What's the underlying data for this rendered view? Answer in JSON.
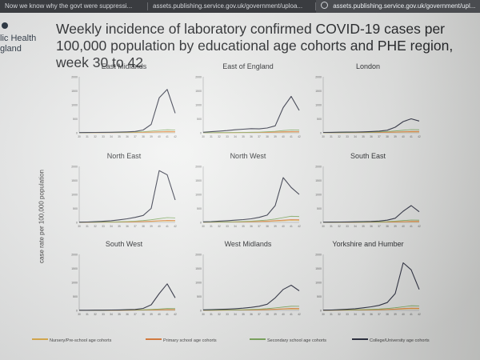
{
  "browser": {
    "tabs": [
      {
        "label": "Now we know why the govt were suppressi..."
      },
      {
        "label": "assets.publishing.service.gov.uk/government/uploa..."
      },
      {
        "label": "assets.publishing.service.gov.uk/government/upl..."
      }
    ]
  },
  "slide": {
    "logo_line1": "lic Health",
    "logo_line2": "gland",
    "title": "Weekly incidence of laboratory confirmed COVID-19 cases per 100,000 population by educational age cohorts and PHE region, week 30 to 42",
    "ylabel": "case rate per 100,000 population"
  },
  "colors": {
    "nursery": "#e2b04a",
    "primary": "#e07a35",
    "secondary": "#7aa85a",
    "college": "#2a2d3e"
  },
  "chart_data": {
    "type": "line",
    "x": [
      30,
      31,
      32,
      33,
      34,
      35,
      36,
      37,
      38,
      39,
      40,
      41,
      42
    ],
    "ylim": [
      0,
      2000
    ],
    "yticks": [
      0,
      500,
      1000,
      1500,
      2000
    ],
    "legend": [
      "Nursery/Pre-school age cohorts",
      "Primary school age cohorts",
      "Secondary school age cohorts",
      "College/University age cohorts"
    ],
    "charts": [
      {
        "title": "East Midlands",
        "series": [
          {
            "name": "Nursery/Pre-school age cohorts",
            "values": [
              4,
              5,
              6,
              7,
              8,
              9,
              10,
              12,
              15,
              20,
              26,
              32,
              30
            ]
          },
          {
            "name": "Primary school age cohorts",
            "values": [
              4,
              5,
              6,
              8,
              10,
              12,
              14,
              17,
              22,
              30,
              40,
              50,
              45
            ]
          },
          {
            "name": "Secondary school age cohorts",
            "values": [
              5,
              6,
              8,
              10,
              12,
              15,
              20,
              28,
              40,
              60,
              85,
              110,
              100
            ]
          },
          {
            "name": "College/University age cohorts",
            "values": [
              10,
              12,
              14,
              16,
              20,
              25,
              35,
              50,
              100,
              300,
              1250,
              1550,
              700
            ]
          }
        ]
      },
      {
        "title": "East of England",
        "series": [
          {
            "name": "Nursery/Pre-school age cohorts",
            "values": [
              3,
              4,
              5,
              6,
              7,
              8,
              9,
              11,
              14,
              18,
              24,
              30,
              28
            ]
          },
          {
            "name": "Primary school age cohorts",
            "values": [
              4,
              5,
              6,
              7,
              9,
              11,
              13,
              16,
              20,
              28,
              36,
              45,
              42
            ]
          },
          {
            "name": "Secondary school age cohorts",
            "values": [
              5,
              6,
              8,
              10,
              12,
              15,
              20,
              26,
              36,
              55,
              80,
              100,
              95
            ]
          },
          {
            "name": "College/University age cohorts",
            "values": [
              20,
              40,
              60,
              80,
              110,
              130,
              150,
              140,
              170,
              250,
              900,
              1300,
              800
            ]
          }
        ]
      },
      {
        "title": "London",
        "series": [
          {
            "name": "Nursery/Pre-school age cohorts",
            "values": [
              4,
              5,
              6,
              7,
              8,
              9,
              11,
              13,
              16,
              20,
              26,
              32,
              30
            ]
          },
          {
            "name": "Primary school age cohorts",
            "values": [
              5,
              6,
              7,
              8,
              10,
              12,
              14,
              17,
              22,
              30,
              40,
              50,
              48
            ]
          },
          {
            "name": "Secondary school age cohorts",
            "values": [
              6,
              7,
              9,
              11,
              14,
              18,
              24,
              32,
              45,
              65,
              90,
              115,
              110
            ]
          },
          {
            "name": "College/University age cohorts",
            "values": [
              15,
              18,
              22,
              26,
              30,
              35,
              45,
              60,
              90,
              200,
              400,
              500,
              420
            ]
          }
        ]
      },
      {
        "title": "North East",
        "series": [
          {
            "name": "Nursery/Pre-school age cohorts",
            "values": [
              4,
              5,
              6,
              8,
              10,
              12,
              15,
              20,
              26,
              34,
              44,
              55,
              52
            ]
          },
          {
            "name": "Primary school age cohorts",
            "values": [
              5,
              6,
              8,
              10,
              13,
              16,
              20,
              26,
              34,
              45,
              60,
              75,
              70
            ]
          },
          {
            "name": "Secondary school age cohorts",
            "values": [
              6,
              8,
              10,
              14,
              18,
              24,
              32,
              45,
              65,
              95,
              135,
              170,
              160
            ]
          },
          {
            "name": "College/University age cohorts",
            "values": [
              10,
              15,
              25,
              40,
              60,
              90,
              130,
              180,
              250,
              500,
              1850,
              1700,
              800
            ]
          }
        ]
      },
      {
        "title": "North West",
        "series": [
          {
            "name": "Nursery/Pre-school age cohorts",
            "values": [
              6,
              8,
              10,
              12,
              15,
              18,
              22,
              28,
              35,
              45,
              58,
              70,
              66
            ]
          },
          {
            "name": "Primary school age cohorts",
            "values": [
              8,
              10,
              12,
              15,
              19,
              24,
              30,
              38,
              48,
              62,
              80,
              100,
              95
            ]
          },
          {
            "name": "Secondary school age cohorts",
            "values": [
              10,
              12,
              15,
              20,
              26,
              34,
              45,
              62,
              85,
              120,
              170,
              220,
              210
            ]
          },
          {
            "name": "College/University age cohorts",
            "values": [
              20,
              30,
              45,
              60,
              80,
              100,
              130,
              180,
              260,
              600,
              1600,
              1250,
              1000
            ]
          }
        ]
      },
      {
        "title": "South East",
        "series": [
          {
            "name": "Nursery/Pre-school age cohorts",
            "values": [
              3,
              4,
              4,
              5,
              6,
              7,
              8,
              10,
              12,
              15,
              20,
              25,
              24
            ]
          },
          {
            "name": "Primary school age cohorts",
            "values": [
              4,
              4,
              5,
              6,
              7,
              9,
              11,
              13,
              17,
              22,
              30,
              38,
              36
            ]
          },
          {
            "name": "Secondary school age cohorts",
            "values": [
              4,
              5,
              6,
              8,
              10,
              12,
              16,
              21,
              30,
              45,
              65,
              85,
              80
            ]
          },
          {
            "name": "College/University age cohorts",
            "values": [
              10,
              12,
              15,
              18,
              22,
              28,
              35,
              50,
              80,
              150,
              400,
              600,
              380
            ]
          }
        ]
      },
      {
        "title": "South West",
        "series": [
          {
            "name": "Nursery/Pre-school age cohorts",
            "values": [
              2,
              3,
              3,
              4,
              5,
              6,
              7,
              9,
              11,
              14,
              18,
              22,
              21
            ]
          },
          {
            "name": "Primary school age cohorts",
            "values": [
              3,
              3,
              4,
              5,
              6,
              7,
              9,
              11,
              14,
              18,
              24,
              30,
              28
            ]
          },
          {
            "name": "Secondary school age cohorts",
            "values": [
              3,
              4,
              5,
              6,
              8,
              10,
              13,
              17,
              24,
              35,
              50,
              65,
              62
            ]
          },
          {
            "name": "College/University age cohorts",
            "values": [
              5,
              6,
              8,
              10,
              14,
              18,
              25,
              35,
              70,
              200,
              600,
              950,
              450
            ]
          }
        ]
      },
      {
        "title": "West Midlands",
        "series": [
          {
            "name": "Nursery/Pre-school age cohorts",
            "values": [
              5,
              6,
              7,
              9,
              11,
              13,
              16,
              20,
              26,
              33,
              42,
              52,
              50
            ]
          },
          {
            "name": "Primary school age cohorts",
            "values": [
              6,
              7,
              9,
              11,
              14,
              17,
              21,
              27,
              35,
              45,
              58,
              72,
              68
            ]
          },
          {
            "name": "Secondary school age cohorts",
            "values": [
              8,
              10,
              12,
              16,
              20,
              26,
              34,
              46,
              62,
              88,
              120,
              150,
              145
            ]
          },
          {
            "name": "College/University age cohorts",
            "values": [
              20,
              28,
              36,
              45,
              60,
              80,
              110,
              150,
              220,
              450,
              750,
              900,
              700
            ]
          }
        ]
      },
      {
        "title": "Yorkshire and Humber",
        "series": [
          {
            "name": "Nursery/Pre-school age cohorts",
            "values": [
              5,
              6,
              8,
              10,
              12,
              15,
              18,
              23,
              30,
              38,
              48,
              60,
              58
            ]
          },
          {
            "name": "Primary school age cohorts",
            "values": [
              6,
              8,
              10,
              12,
              15,
              19,
              24,
              30,
              39,
              50,
              65,
              82,
              78
            ]
          },
          {
            "name": "Secondary school age cohorts",
            "values": [
              8,
              10,
              13,
              17,
              22,
              28,
              37,
              50,
              68,
              95,
              130,
              165,
              160
            ]
          },
          {
            "name": "College/University age cohorts",
            "values": [
              10,
              15,
              25,
              40,
              60,
              90,
              130,
              180,
              280,
              600,
              1700,
              1450,
              750
            ]
          }
        ]
      }
    ]
  }
}
